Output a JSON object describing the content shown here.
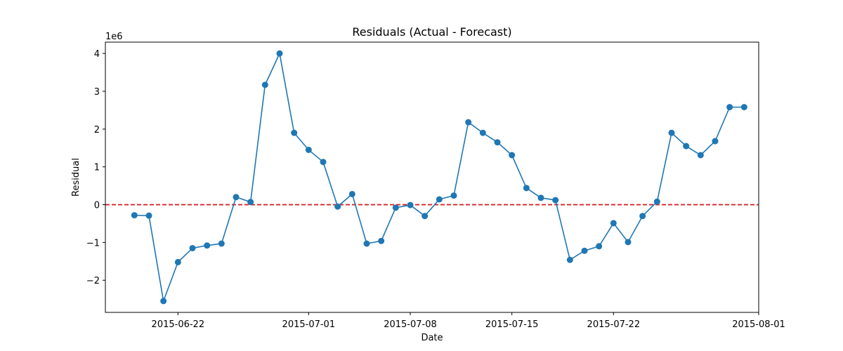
{
  "chart_data": {
    "type": "line",
    "title": "Residuals (Actual - Forecast)",
    "xlabel": "Date",
    "ylabel": "Residual",
    "y_multiplier_label": "1e6",
    "y_scale": 1000000,
    "xlim": [
      "2015-06-17",
      "2015-08-01"
    ],
    "ylim": [
      -2.85,
      4.3
    ],
    "x_ticks": [
      "2015-06-22",
      "2015-07-01",
      "2015-07-08",
      "2015-07-15",
      "2015-07-22",
      "2015-08-01"
    ],
    "y_ticks": [
      -2,
      -1,
      0,
      1,
      2,
      3,
      4
    ],
    "y_tick_labels": [
      "−2",
      "−1",
      "0",
      "1",
      "2",
      "3",
      "4"
    ],
    "grid": false,
    "reference_line": {
      "y": 0,
      "color": "#d62728",
      "style": "dashed"
    },
    "series": [
      {
        "color": "#1f77b4",
        "x": [
          "2015-06-19",
          "2015-06-20",
          "2015-06-21",
          "2015-06-22",
          "2015-06-23",
          "2015-06-24",
          "2015-06-25",
          "2015-06-26",
          "2015-06-27",
          "2015-06-28",
          "2015-06-29",
          "2015-06-30",
          "2015-07-01",
          "2015-07-02",
          "2015-07-03",
          "2015-07-04",
          "2015-07-05",
          "2015-07-06",
          "2015-07-07",
          "2015-07-08",
          "2015-07-09",
          "2015-07-10",
          "2015-07-11",
          "2015-07-12",
          "2015-07-13",
          "2015-07-14",
          "2015-07-15",
          "2015-07-16",
          "2015-07-17",
          "2015-07-18",
          "2015-07-19",
          "2015-07-20",
          "2015-07-21",
          "2015-07-22",
          "2015-07-23",
          "2015-07-24",
          "2015-07-25",
          "2015-07-26",
          "2015-07-27",
          "2015-07-28",
          "2015-07-29",
          "2015-07-30",
          "2015-07-31"
        ],
        "y": [
          -0.28,
          -0.29,
          -2.55,
          -1.52,
          -1.15,
          -1.08,
          -1.03,
          0.2,
          0.07,
          3.17,
          4.0,
          1.9,
          1.45,
          1.13,
          -0.05,
          0.28,
          -1.03,
          -0.96,
          -0.08,
          -0.01,
          -0.3,
          0.14,
          0.24,
          2.18,
          1.9,
          1.65,
          1.31,
          0.44,
          0.18,
          0.12,
          -1.46,
          -1.22,
          -1.1,
          -0.49,
          -0.99,
          -0.3,
          0.08,
          1.9,
          1.55,
          1.31,
          1.68,
          2.58,
          2.58
        ]
      }
    ]
  }
}
